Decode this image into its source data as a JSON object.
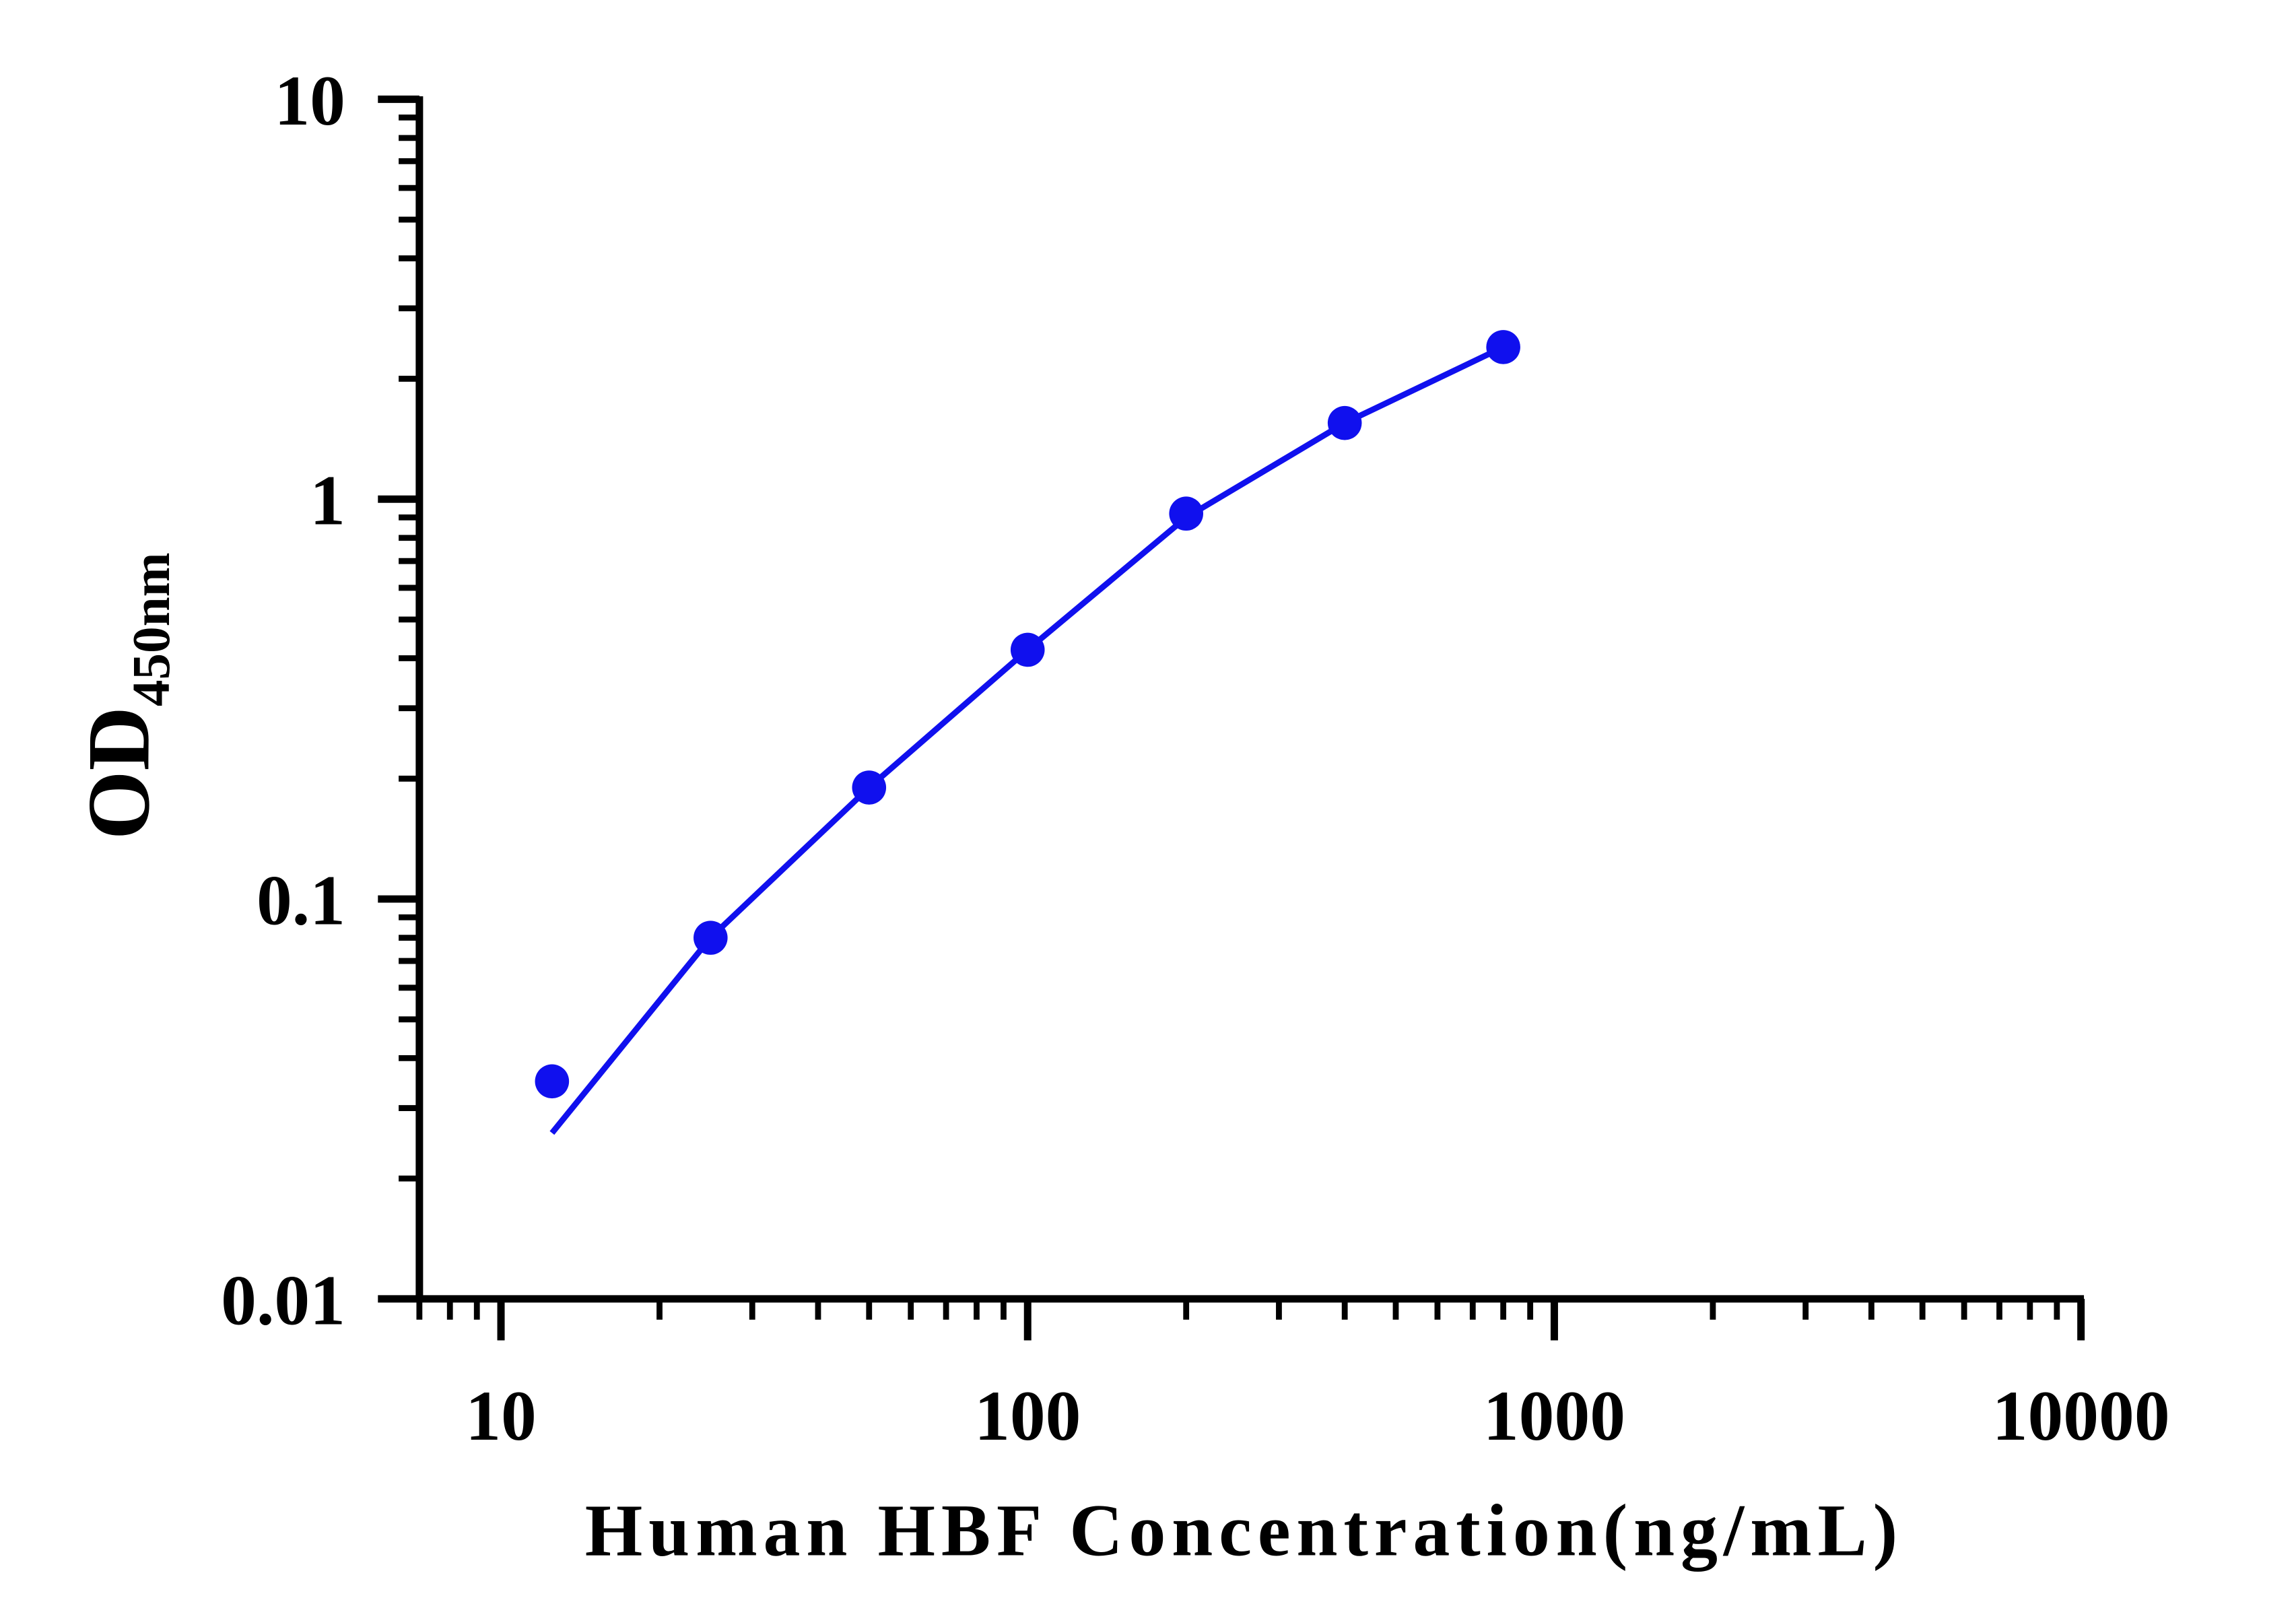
{
  "chart_data": {
    "type": "scatter",
    "x_label": "Human HBF Concentration(ng/mL)",
    "y_label": "OD",
    "y_label_subscript": "450nm",
    "xscale": "log",
    "yscale": "log",
    "xlim": [
      7,
      10000
    ],
    "ylim": [
      0.01,
      10
    ],
    "xticks": [
      10,
      100,
      1000,
      10000
    ],
    "yticks": [
      0.01,
      0.1,
      1,
      10
    ],
    "color": "#1010ee",
    "points": {
      "x": [
        12.5,
        25,
        50,
        100,
        200,
        400,
        800
      ],
      "values": [
        0.035,
        0.08,
        0.19,
        0.42,
        0.92,
        1.55,
        2.4
      ]
    },
    "fit": {
      "x": [
        12.5,
        25,
        50,
        100,
        200,
        400,
        800
      ],
      "values": [
        0.026,
        0.08,
        0.19,
        0.42,
        0.9,
        1.55,
        2.4
      ]
    }
  }
}
